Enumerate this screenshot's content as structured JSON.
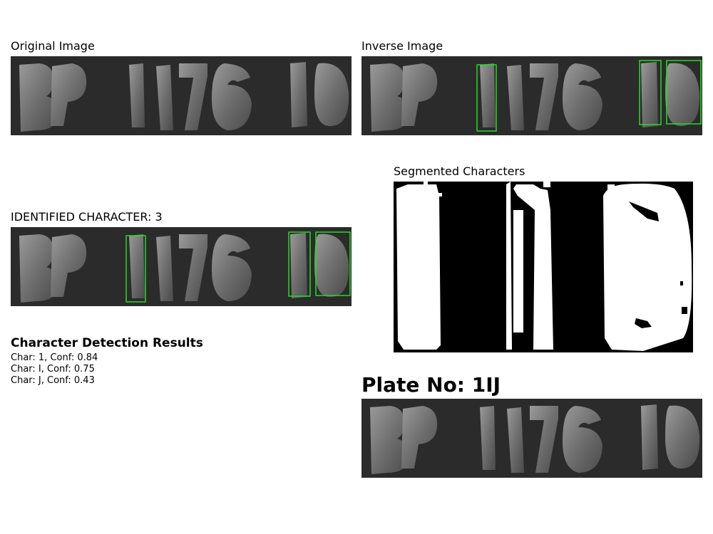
{
  "panels": {
    "original_label": "Original Image",
    "inverse_label": "Inverse Image",
    "identified_label": "IDENTIFIED CHARACTER: 3",
    "segmented_label": "Segmented Characters"
  },
  "results": {
    "title": "Character Detection Results",
    "lines": [
      "Char: 1, Conf: 0.84",
      "Char: I, Conf: 0.75",
      "Char: J, Conf: 0.43"
    ]
  },
  "plate": {
    "label": "Plate No: 1IJ"
  },
  "colors": {
    "plate_bg": "#2b2b2b",
    "glyph": "#7c7c7c",
    "box": "#22dd22"
  }
}
